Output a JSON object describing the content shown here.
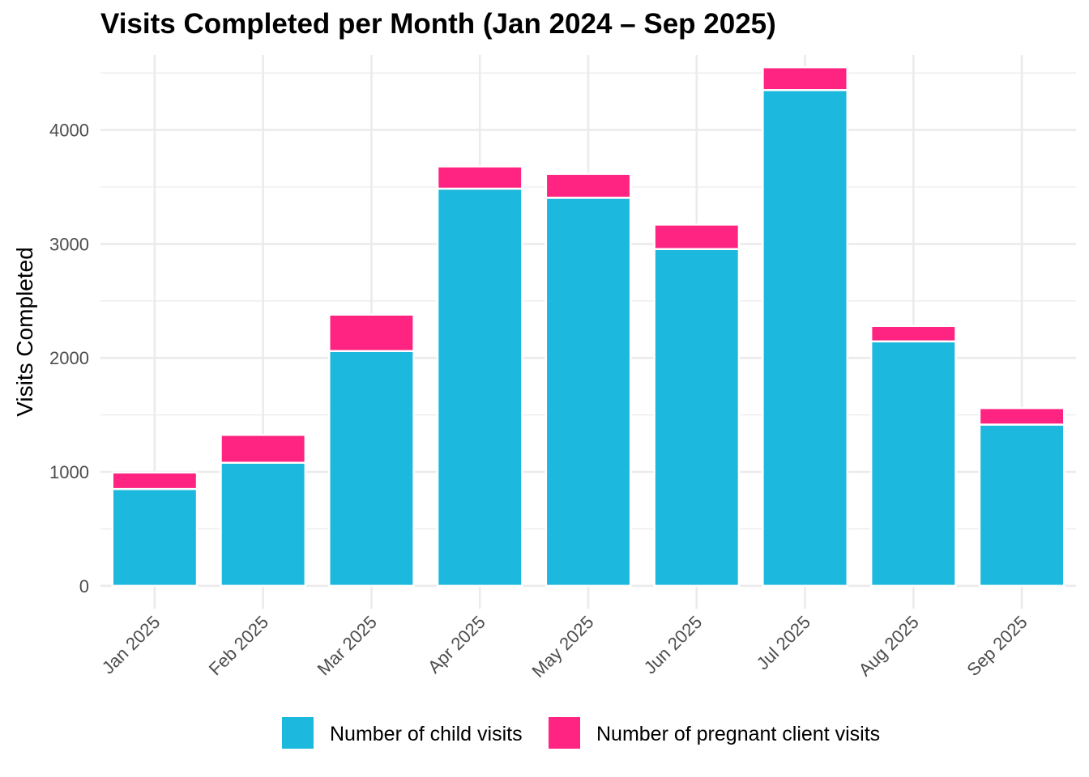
{
  "chart_data": {
    "type": "bar",
    "stacked": true,
    "title": "Visits Completed per Month (Jan 2024 – Sep 2025)",
    "xlabel": "",
    "ylabel": "Visits Completed",
    "categories": [
      "Jan 2025",
      "Feb 2025",
      "Mar 2025",
      "Apr 2025",
      "May 2025",
      "Jun 2025",
      "Jul 2025",
      "Aug 2025",
      "Sep 2025"
    ],
    "series": [
      {
        "name": "Number of child visits",
        "color": "#1cb8de",
        "values": [
          850,
          1080,
          2060,
          3485,
          3405,
          2955,
          4350,
          2145,
          1415
        ]
      },
      {
        "name": "Number of pregnant client visits",
        "color": "#ff2382",
        "values": [
          145,
          245,
          320,
          195,
          210,
          215,
          200,
          135,
          145
        ]
      }
    ],
    "ylim": [
      -200,
      4700
    ],
    "yticks": [
      0,
      1000,
      2000,
      3000,
      4000
    ],
    "grid": true,
    "legend_position": "bottom"
  }
}
